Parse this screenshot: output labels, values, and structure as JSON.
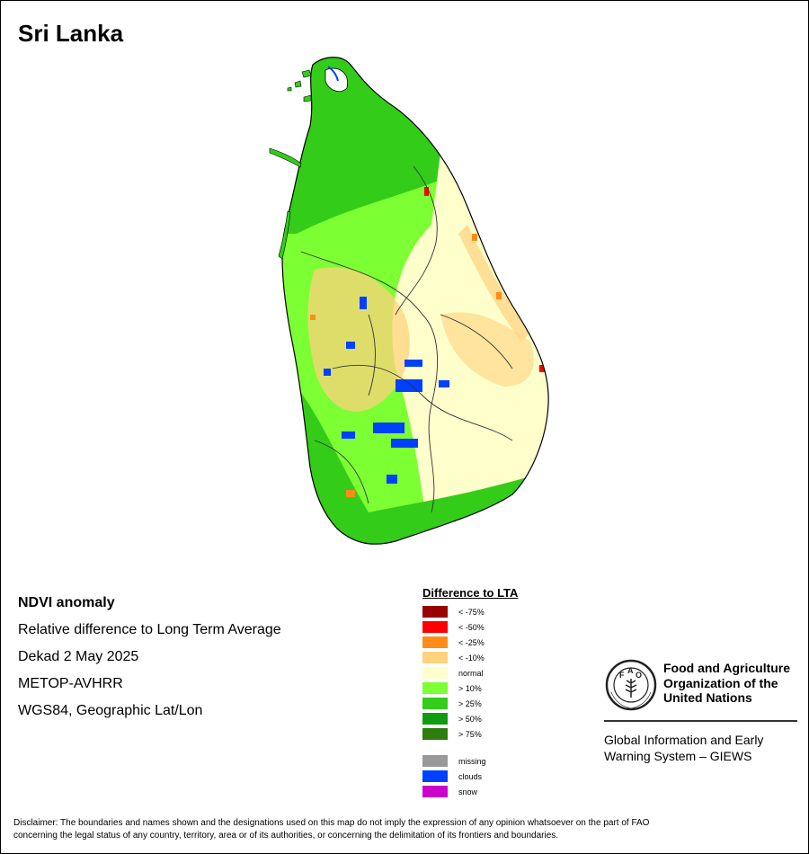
{
  "title": "Sri Lanka",
  "info": {
    "heading": "NDVI anomaly",
    "line1": "Relative difference to Long Term Average",
    "line2": "Dekad 2 May 2025",
    "line3": "METOP-AVHRR",
    "line4": "WGS84, Geographic Lat/Lon"
  },
  "legend": {
    "title": "Difference to LTA",
    "classes": [
      {
        "label": "< -75%",
        "color": "#990000"
      },
      {
        "label": "< -50%",
        "color": "#ff0000"
      },
      {
        "label": "< -25%",
        "color": "#ff8c19"
      },
      {
        "label": "< -10%",
        "color": "#ffd27d"
      },
      {
        "label": "normal",
        "color": "#ffffcc"
      },
      {
        "label": "> 10%",
        "color": "#7cff33"
      },
      {
        "label": "> 25%",
        "color": "#33cc19"
      },
      {
        "label": "> 50%",
        "color": "#109c10"
      },
      {
        "label": "> 75%",
        "color": "#2e7d0f"
      }
    ],
    "extra": [
      {
        "label": "missing",
        "color": "#999999"
      },
      {
        "label": "clouds",
        "color": "#0040ff"
      },
      {
        "label": "snow",
        "color": "#cc00cc"
      }
    ]
  },
  "logo": {
    "name": "Food and Agriculture Organization of the United Nations",
    "name_line1": "Food and Agriculture",
    "name_line2": "Organization of the",
    "name_line3": "United Nations",
    "seal_text": "FIAT PANIS",
    "system_line1": "Global Information and Early",
    "system_line2": "Warning System – GIEWS"
  },
  "disclaimer_line1": "Disclaimer: The boundaries and names shown and the designations used on this map do not imply the expression of any opinion whatsoever on the part of FAO",
  "disclaimer_line2": "concerning the legal status of any country, territory, area or of its authorities, or concerning the delimitation of its frontiers and boundaries."
}
